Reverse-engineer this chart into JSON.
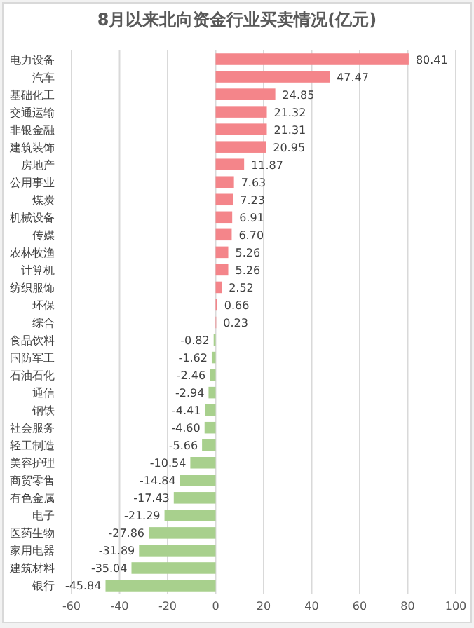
{
  "chart_data": {
    "type": "bar",
    "orientation": "horizontal",
    "title": "8月以来北向资金行业买卖情况(亿元)",
    "categories": [
      "电力设备",
      "汽车",
      "基础化工",
      "交通运输",
      "非银金融",
      "建筑装饰",
      "房地产",
      "公用事业",
      "煤炭",
      "机械设备",
      "传媒",
      "农林牧渔",
      "计算机",
      "纺织服饰",
      "环保",
      "综合",
      "食品饮料",
      "国防军工",
      "石油石化",
      "通信",
      "钢铁",
      "社会服务",
      "轻工制造",
      "美容护理",
      "商贸零售",
      "有色金属",
      "电子",
      "医药生物",
      "家用电器",
      "建筑材料",
      "银行"
    ],
    "values": [
      80.41,
      47.47,
      24.85,
      21.32,
      21.31,
      20.95,
      11.87,
      7.63,
      7.23,
      6.91,
      6.7,
      5.26,
      5.26,
      2.52,
      0.66,
      0.23,
      -0.82,
      -1.62,
      -2.46,
      -2.94,
      -4.41,
      -4.6,
      -5.66,
      -10.54,
      -14.84,
      -17.43,
      -21.29,
      -27.86,
      -31.89,
      -35.04,
      -45.84
    ],
    "colors": [
      "#f4858a",
      "#f4858a",
      "#f4858a",
      "#f4858a",
      "#f4858a",
      "#f4858a",
      "#f4858a",
      "#f4858a",
      "#f4858a",
      "#f4858a",
      "#f4858a",
      "#f4858a",
      "#f4858a",
      "#f4858a",
      "#f4858a",
      "#f4858a",
      "#a8d08d",
      "#a8d08d",
      "#a8d08d",
      "#a8d08d",
      "#a8d08d",
      "#a8d08d",
      "#a8d08d",
      "#a8d08d",
      "#a8d08d",
      "#a8d08d",
      "#a8d08d",
      "#a8d08d",
      "#a8d08d",
      "#a8d08d",
      "#a8d08d"
    ],
    "xlim": [
      -60,
      100
    ],
    "xticks": [
      -60,
      -40,
      -20,
      0,
      20,
      40,
      60,
      80,
      100
    ],
    "value_labels": [
      "80.41",
      "47.47",
      "24.85",
      "21.32",
      "21.31",
      "20.95",
      "11.87",
      "7.63",
      "7.23",
      "6.91",
      "6.70",
      "5.26",
      "5.26",
      "2.52",
      "0.66",
      "0.23",
      "-0.82",
      "-1.62",
      "-2.46",
      "-2.94",
      "-4.41",
      "-4.60",
      "-5.66",
      "-10.54",
      "-14.84",
      "-17.43",
      "-21.29",
      "-27.86",
      "-31.89",
      "-35.04",
      "-45.84"
    ],
    "grid": "x"
  }
}
